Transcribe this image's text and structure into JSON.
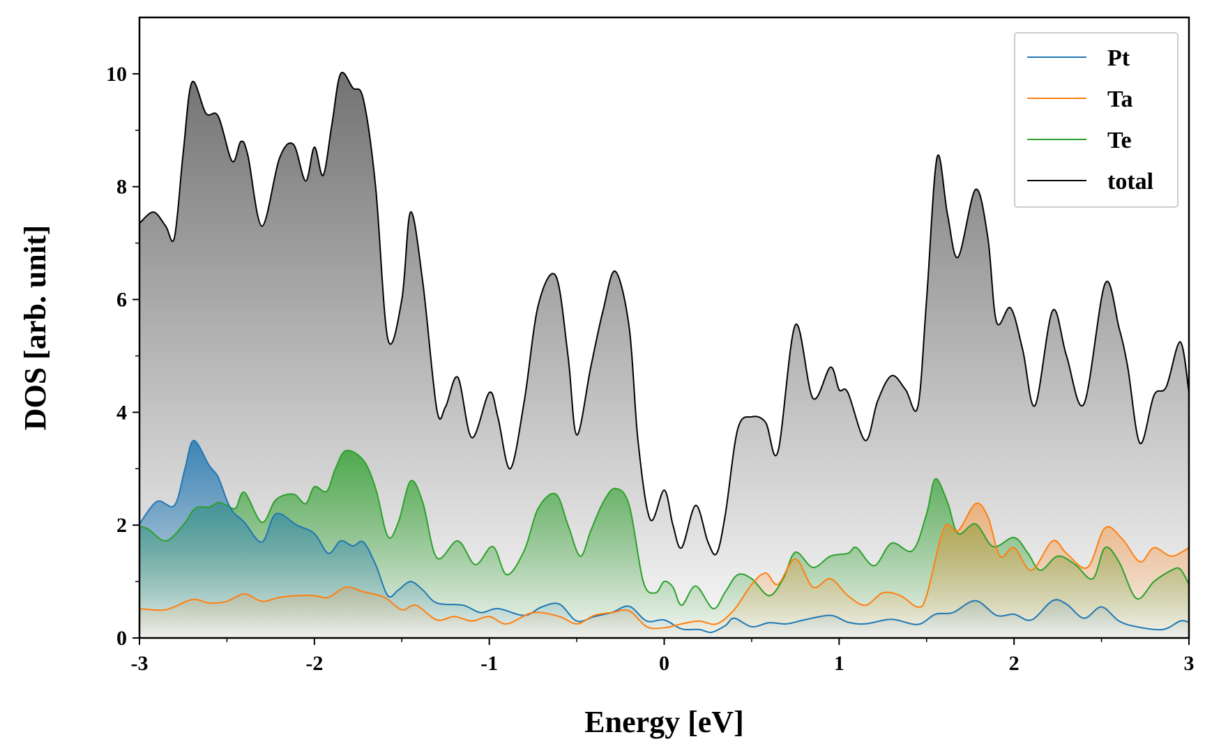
{
  "chart_data": {
    "type": "area",
    "title": "",
    "xlabel": "Energy [eV]",
    "ylabel": "DOS [arb. unit]",
    "xlim": [
      -3,
      3
    ],
    "ylim": [
      0,
      11
    ],
    "xticks": [
      -3,
      -2,
      -1,
      0,
      1,
      2,
      3
    ],
    "xtick_labels": [
      "-3",
      "-2",
      "-1",
      "0",
      "1",
      "2",
      "3"
    ],
    "yticks": [
      0,
      2,
      4,
      6,
      8,
      10
    ],
    "ytick_labels": [
      "0",
      "2",
      "4",
      "6",
      "8",
      "10"
    ],
    "grid": false,
    "legend_position": "top-right",
    "series": [
      {
        "name": "Pt",
        "color": "#1f77b4",
        "points": [
          [
            -3,
            2.02
          ],
          [
            -2.9,
            2.42
          ],
          [
            -2.8,
            2.35
          ],
          [
            -2.74,
            3.0
          ],
          [
            -2.69,
            3.5
          ],
          [
            -2.6,
            3.05
          ],
          [
            -2.55,
            2.85
          ],
          [
            -2.48,
            2.3
          ],
          [
            -2.4,
            2.05
          ],
          [
            -2.3,
            1.7
          ],
          [
            -2.22,
            2.2
          ],
          [
            -2.1,
            2.0
          ],
          [
            -2.0,
            1.85
          ],
          [
            -1.92,
            1.5
          ],
          [
            -1.85,
            1.72
          ],
          [
            -1.78,
            1.63
          ],
          [
            -1.72,
            1.7
          ],
          [
            -1.65,
            1.3
          ],
          [
            -1.58,
            0.75
          ],
          [
            -1.52,
            0.85
          ],
          [
            -1.45,
            1.0
          ],
          [
            -1.38,
            0.85
          ],
          [
            -1.3,
            0.62
          ],
          [
            -1.15,
            0.58
          ],
          [
            -1.05,
            0.45
          ],
          [
            -0.95,
            0.52
          ],
          [
            -0.8,
            0.4
          ],
          [
            -0.7,
            0.55
          ],
          [
            -0.6,
            0.6
          ],
          [
            -0.5,
            0.3
          ],
          [
            -0.4,
            0.38
          ],
          [
            -0.3,
            0.45
          ],
          [
            -0.2,
            0.56
          ],
          [
            -0.1,
            0.3
          ],
          [
            0,
            0.32
          ],
          [
            0.1,
            0.16
          ],
          [
            0.2,
            0.15
          ],
          [
            0.27,
            0.1
          ],
          [
            0.35,
            0.22
          ],
          [
            0.4,
            0.35
          ],
          [
            0.5,
            0.2
          ],
          [
            0.6,
            0.27
          ],
          [
            0.7,
            0.25
          ],
          [
            0.8,
            0.32
          ],
          [
            0.95,
            0.4
          ],
          [
            1.05,
            0.28
          ],
          [
            1.15,
            0.25
          ],
          [
            1.3,
            0.33
          ],
          [
            1.45,
            0.24
          ],
          [
            1.55,
            0.42
          ],
          [
            1.65,
            0.45
          ],
          [
            1.78,
            0.66
          ],
          [
            1.9,
            0.4
          ],
          [
            2.0,
            0.42
          ],
          [
            2.1,
            0.32
          ],
          [
            2.22,
            0.66
          ],
          [
            2.3,
            0.6
          ],
          [
            2.4,
            0.35
          ],
          [
            2.5,
            0.55
          ],
          [
            2.6,
            0.3
          ],
          [
            2.7,
            0.2
          ],
          [
            2.85,
            0.15
          ],
          [
            2.95,
            0.3
          ],
          [
            3,
            0.28
          ]
        ]
      },
      {
        "name": "Ta",
        "color": "#ff7f0e",
        "points": [
          [
            -3,
            0.52
          ],
          [
            -2.85,
            0.5
          ],
          [
            -2.7,
            0.68
          ],
          [
            -2.6,
            0.62
          ],
          [
            -2.5,
            0.65
          ],
          [
            -2.4,
            0.78
          ],
          [
            -2.3,
            0.65
          ],
          [
            -2.2,
            0.72
          ],
          [
            -2.1,
            0.75
          ],
          [
            -2.0,
            0.75
          ],
          [
            -1.92,
            0.72
          ],
          [
            -1.82,
            0.9
          ],
          [
            -1.72,
            0.82
          ],
          [
            -1.6,
            0.72
          ],
          [
            -1.5,
            0.5
          ],
          [
            -1.42,
            0.58
          ],
          [
            -1.3,
            0.32
          ],
          [
            -1.2,
            0.38
          ],
          [
            -1.1,
            0.3
          ],
          [
            -1.0,
            0.38
          ],
          [
            -0.9,
            0.25
          ],
          [
            -0.75,
            0.45
          ],
          [
            -0.6,
            0.38
          ],
          [
            -0.5,
            0.25
          ],
          [
            -0.4,
            0.4
          ],
          [
            -0.3,
            0.45
          ],
          [
            -0.2,
            0.48
          ],
          [
            -0.1,
            0.2
          ],
          [
            0,
            0.18
          ],
          [
            0.1,
            0.25
          ],
          [
            0.2,
            0.3
          ],
          [
            0.3,
            0.25
          ],
          [
            0.4,
            0.5
          ],
          [
            0.5,
            0.95
          ],
          [
            0.58,
            1.15
          ],
          [
            0.65,
            0.95
          ],
          [
            0.75,
            1.4
          ],
          [
            0.85,
            0.9
          ],
          [
            0.95,
            1.05
          ],
          [
            1.05,
            0.75
          ],
          [
            1.15,
            0.58
          ],
          [
            1.25,
            0.8
          ],
          [
            1.35,
            0.75
          ],
          [
            1.45,
            0.55
          ],
          [
            1.5,
            0.75
          ],
          [
            1.6,
            1.95
          ],
          [
            1.68,
            1.9
          ],
          [
            1.78,
            2.38
          ],
          [
            1.85,
            2.15
          ],
          [
            1.92,
            1.45
          ],
          [
            2.0,
            1.6
          ],
          [
            2.1,
            1.2
          ],
          [
            2.22,
            1.72
          ],
          [
            2.3,
            1.5
          ],
          [
            2.42,
            1.25
          ],
          [
            2.52,
            1.95
          ],
          [
            2.62,
            1.75
          ],
          [
            2.72,
            1.35
          ],
          [
            2.8,
            1.6
          ],
          [
            2.9,
            1.45
          ],
          [
            3,
            1.6
          ]
        ]
      },
      {
        "name": "Te",
        "color": "#2ca02c",
        "points": [
          [
            -3,
            1.98
          ],
          [
            -2.95,
            1.93
          ],
          [
            -2.85,
            1.72
          ],
          [
            -2.75,
            2.0
          ],
          [
            -2.68,
            2.3
          ],
          [
            -2.6,
            2.32
          ],
          [
            -2.55,
            2.4
          ],
          [
            -2.5,
            2.35
          ],
          [
            -2.45,
            2.3
          ],
          [
            -2.4,
            2.58
          ],
          [
            -2.3,
            2.05
          ],
          [
            -2.22,
            2.45
          ],
          [
            -2.12,
            2.55
          ],
          [
            -2.05,
            2.38
          ],
          [
            -2.0,
            2.68
          ],
          [
            -1.93,
            2.6
          ],
          [
            -1.88,
            3.0
          ],
          [
            -1.82,
            3.32
          ],
          [
            -1.72,
            3.15
          ],
          [
            -1.65,
            2.65
          ],
          [
            -1.58,
            1.8
          ],
          [
            -1.52,
            2.05
          ],
          [
            -1.45,
            2.78
          ],
          [
            -1.38,
            2.4
          ],
          [
            -1.3,
            1.42
          ],
          [
            -1.18,
            1.72
          ],
          [
            -1.08,
            1.3
          ],
          [
            -0.98,
            1.62
          ],
          [
            -0.9,
            1.12
          ],
          [
            -0.8,
            1.55
          ],
          [
            -0.72,
            2.3
          ],
          [
            -0.62,
            2.55
          ],
          [
            -0.55,
            2.0
          ],
          [
            -0.48,
            1.45
          ],
          [
            -0.42,
            1.9
          ],
          [
            -0.35,
            2.4
          ],
          [
            -0.28,
            2.65
          ],
          [
            -0.2,
            2.35
          ],
          [
            -0.12,
            1.0
          ],
          [
            -0.05,
            0.8
          ],
          [
            0,
            1.0
          ],
          [
            0.05,
            0.9
          ],
          [
            0.1,
            0.58
          ],
          [
            0.18,
            0.92
          ],
          [
            0.28,
            0.52
          ],
          [
            0.35,
            0.82
          ],
          [
            0.42,
            1.12
          ],
          [
            0.5,
            1.05
          ],
          [
            0.6,
            0.75
          ],
          [
            0.68,
            1.05
          ],
          [
            0.75,
            1.52
          ],
          [
            0.85,
            1.25
          ],
          [
            0.95,
            1.45
          ],
          [
            1.05,
            1.5
          ],
          [
            1.1,
            1.6
          ],
          [
            1.2,
            1.28
          ],
          [
            1.3,
            1.68
          ],
          [
            1.42,
            1.55
          ],
          [
            1.5,
            2.2
          ],
          [
            1.55,
            2.82
          ],
          [
            1.62,
            2.4
          ],
          [
            1.68,
            1.85
          ],
          [
            1.78,
            2.02
          ],
          [
            1.88,
            1.62
          ],
          [
            2.0,
            1.78
          ],
          [
            2.08,
            1.5
          ],
          [
            2.15,
            1.2
          ],
          [
            2.25,
            1.45
          ],
          [
            2.35,
            1.3
          ],
          [
            2.45,
            1.05
          ],
          [
            2.52,
            1.6
          ],
          [
            2.6,
            1.35
          ],
          [
            2.7,
            0.7
          ],
          [
            2.8,
            1.0
          ],
          [
            2.9,
            1.2
          ],
          [
            2.95,
            1.22
          ],
          [
            3,
            0.95
          ]
        ]
      },
      {
        "name": "total",
        "color": "#000000",
        "points": [
          [
            -3,
            7.35
          ],
          [
            -2.92,
            7.55
          ],
          [
            -2.85,
            7.3
          ],
          [
            -2.8,
            7.1
          ],
          [
            -2.75,
            8.6
          ],
          [
            -2.7,
            9.85
          ],
          [
            -2.62,
            9.3
          ],
          [
            -2.55,
            9.25
          ],
          [
            -2.47,
            8.45
          ],
          [
            -2.42,
            8.8
          ],
          [
            -2.38,
            8.55
          ],
          [
            -2.3,
            7.3
          ],
          [
            -2.2,
            8.5
          ],
          [
            -2.12,
            8.75
          ],
          [
            -2.05,
            8.1
          ],
          [
            -2.0,
            8.7
          ],
          [
            -1.95,
            8.2
          ],
          [
            -1.9,
            9.1
          ],
          [
            -1.85,
            10.0
          ],
          [
            -1.78,
            9.75
          ],
          [
            -1.72,
            9.55
          ],
          [
            -1.65,
            8.0
          ],
          [
            -1.58,
            5.3
          ],
          [
            -1.5,
            6.0
          ],
          [
            -1.45,
            7.55
          ],
          [
            -1.38,
            6.3
          ],
          [
            -1.3,
            4.05
          ],
          [
            -1.25,
            4.1
          ],
          [
            -1.18,
            4.62
          ],
          [
            -1.1,
            3.55
          ],
          [
            -1.0,
            4.35
          ],
          [
            -0.95,
            3.9
          ],
          [
            -0.88,
            3.0
          ],
          [
            -0.8,
            4.2
          ],
          [
            -0.72,
            5.9
          ],
          [
            -0.62,
            6.42
          ],
          [
            -0.55,
            5.0
          ],
          [
            -0.5,
            3.6
          ],
          [
            -0.42,
            4.8
          ],
          [
            -0.35,
            5.8
          ],
          [
            -0.28,
            6.5
          ],
          [
            -0.2,
            5.5
          ],
          [
            -0.15,
            3.5
          ],
          [
            -0.08,
            2.1
          ],
          [
            0,
            2.62
          ],
          [
            0.05,
            2.0
          ],
          [
            0.1,
            1.6
          ],
          [
            0.18,
            2.35
          ],
          [
            0.25,
            1.7
          ],
          [
            0.3,
            1.5
          ],
          [
            0.35,
            2.2
          ],
          [
            0.42,
            3.7
          ],
          [
            0.5,
            3.92
          ],
          [
            0.58,
            3.82
          ],
          [
            0.65,
            3.3
          ],
          [
            0.75,
            5.55
          ],
          [
            0.85,
            4.25
          ],
          [
            0.95,
            4.8
          ],
          [
            1.0,
            4.4
          ],
          [
            1.05,
            4.35
          ],
          [
            1.15,
            3.5
          ],
          [
            1.22,
            4.2
          ],
          [
            1.3,
            4.65
          ],
          [
            1.38,
            4.4
          ],
          [
            1.45,
            4.1
          ],
          [
            1.5,
            6.0
          ],
          [
            1.56,
            8.52
          ],
          [
            1.62,
            7.5
          ],
          [
            1.68,
            6.75
          ],
          [
            1.78,
            7.95
          ],
          [
            1.85,
            7.1
          ],
          [
            1.9,
            5.6
          ],
          [
            1.98,
            5.85
          ],
          [
            2.05,
            5.1
          ],
          [
            2.12,
            4.12
          ],
          [
            2.22,
            5.8
          ],
          [
            2.3,
            5.0
          ],
          [
            2.4,
            4.15
          ],
          [
            2.52,
            6.28
          ],
          [
            2.6,
            5.5
          ],
          [
            2.65,
            4.8
          ],
          [
            2.72,
            3.45
          ],
          [
            2.8,
            4.3
          ],
          [
            2.87,
            4.45
          ],
          [
            2.95,
            5.25
          ],
          [
            3,
            4.35
          ]
        ]
      }
    ]
  }
}
